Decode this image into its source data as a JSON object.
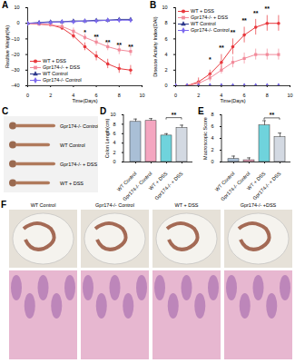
{
  "chart_data": [
    {
      "panel": "A",
      "type": "line",
      "x_label": "Time(Days)",
      "y_label": "Realtive Weight(%)",
      "x": [
        0,
        1,
        2,
        3,
        4,
        5,
        6,
        7,
        8,
        9
      ],
      "xlim": [
        0,
        10
      ],
      "xticks": [
        0,
        2,
        4,
        6,
        8,
        10
      ],
      "ylim": [
        -40,
        10
      ],
      "yticks": [
        -40,
        -30,
        -20,
        -10,
        0,
        10
      ],
      "legend": "lower left",
      "series": [
        {
          "name": "WT + DSS",
          "color": "#e8383d",
          "marker": "circle",
          "values": [
            0,
            -0.5,
            -1,
            -3,
            -8,
            -15,
            -21,
            -26,
            -29,
            -30
          ],
          "errors": [
            0,
            0.5,
            1,
            1.5,
            2,
            2.5,
            3,
            3,
            3,
            3
          ]
        },
        {
          "name": "Gpr174-/- + DSS",
          "color": "#f28a9a",
          "marker": "square",
          "values": [
            0,
            -0.5,
            -1,
            -2,
            -5,
            -9,
            -12,
            -15,
            -17,
            -18
          ],
          "errors": [
            0,
            0.5,
            1,
            1.5,
            2,
            2,
            2.5,
            2.5,
            3,
            3
          ]
        },
        {
          "name": "WT Control",
          "color": "#2e3a8c",
          "marker": "triangle",
          "values": [
            0,
            0.5,
            1,
            1,
            1.5,
            1.5,
            2,
            2,
            2.5,
            2.5
          ],
          "errors": [
            0,
            0.5,
            0.5,
            0.5,
            0.5,
            0.5,
            0.5,
            0.5,
            0.5,
            0.5
          ]
        },
        {
          "name": "Gpr174-/- Control",
          "color": "#7b68ee",
          "marker": "diamond",
          "values": [
            0,
            0.3,
            0.5,
            1,
            1,
            1.5,
            1.5,
            2,
            2,
            2
          ],
          "errors": [
            0,
            0.5,
            0.5,
            0.5,
            0.5,
            0.5,
            0.5,
            0.5,
            0.5,
            0.5
          ]
        }
      ],
      "annotations": [
        {
          "x": 5,
          "y": -6,
          "text": "*"
        },
        {
          "x": 6,
          "y": -9,
          "text": "**"
        },
        {
          "x": 7,
          "y": -12,
          "text": "**"
        },
        {
          "x": 8,
          "y": -14,
          "text": "**"
        },
        {
          "x": 9,
          "y": -15,
          "text": "**"
        }
      ]
    },
    {
      "panel": "B",
      "type": "line",
      "x_label": "Time(Days)",
      "y_label": "Disease Activity Index(DAI)",
      "x": [
        0,
        1,
        2,
        3,
        4,
        5,
        6,
        7,
        8,
        9
      ],
      "xlim": [
        0,
        10
      ],
      "xticks": [
        0,
        2,
        4,
        6,
        8,
        10
      ],
      "ylim": [
        0,
        10
      ],
      "yticks": [
        0,
        2,
        4,
        6,
        8,
        10
      ],
      "legend": "upper left",
      "series": [
        {
          "name": "WT + DSS",
          "color": "#e8383d",
          "marker": "circle",
          "values": [
            0,
            0,
            0.5,
            1.5,
            3,
            5,
            6.5,
            7.5,
            8,
            8
          ],
          "errors": [
            0,
            0,
            0.5,
            0.5,
            1,
            1,
            1,
            1,
            1,
            1
          ]
        },
        {
          "name": "Gpr174-/- + DSS",
          "color": "#f28a9a",
          "marker": "square",
          "values": [
            0,
            0,
            0.3,
            1,
            2,
            3,
            3.5,
            4,
            4,
            4
          ],
          "errors": [
            0,
            0,
            0.3,
            0.5,
            0.5,
            0.7,
            0.7,
            0.7,
            0.7,
            0.7
          ]
        },
        {
          "name": "WT Control",
          "color": "#2e3a8c",
          "marker": "triangle",
          "values": [
            0,
            0,
            0,
            0,
            0,
            0,
            0,
            0,
            0,
            0
          ],
          "errors": [
            0,
            0,
            0,
            0,
            0,
            0,
            0,
            0,
            0,
            0
          ]
        },
        {
          "name": "Gpr174-/- Control",
          "color": "#7b68ee",
          "marker": "diamond",
          "values": [
            0,
            0,
            0,
            0,
            0,
            0,
            0,
            0,
            0,
            0
          ],
          "errors": [
            0,
            0,
            0,
            0,
            0,
            0,
            0,
            0,
            0,
            0
          ]
        }
      ],
      "annotations": [
        {
          "x": 3,
          "y": 3.3,
          "text": "*"
        },
        {
          "x": 4,
          "y": 4.8,
          "text": "**"
        },
        {
          "x": 5,
          "y": 6.8,
          "text": "**"
        },
        {
          "x": 6,
          "y": 8.3,
          "text": "**"
        },
        {
          "x": 7,
          "y": 9.3,
          "text": "**"
        },
        {
          "x": 8,
          "y": 9.8,
          "text": "**"
        }
      ]
    },
    {
      "panel": "D",
      "type": "bar",
      "y_label": "Colon Length(cm)",
      "categories": [
        "WT Control",
        "Gpr174-/- Control",
        "WT + DSS",
        "Gpr174-/- + DSS"
      ],
      "values": [
        8.5,
        8.7,
        5.6,
        7.2
      ],
      "errors": [
        0.6,
        0.5,
        0.4,
        0.6
      ],
      "colors": [
        "#a9bfd6",
        "#f4a6c0",
        "#6fd3dc",
        "#d3d9e2"
      ],
      "ylim": [
        0,
        10
      ],
      "yticks": [
        0,
        2,
        4,
        6,
        8,
        10
      ],
      "annotations": [
        {
          "from": "WT + DSS",
          "to": "Gpr174-/- + DSS",
          "y": 9.3,
          "text": "**"
        }
      ]
    },
    {
      "panel": "E",
      "type": "bar",
      "y_label": "Macroscopic Score",
      "categories": [
        "WT Control",
        "Gpr174-/- Control",
        "WT + DSS",
        "Gpr174-/- + DSS"
      ],
      "values": [
        0.5,
        0.3,
        6.2,
        4.2
      ],
      "errors": [
        0.5,
        0.4,
        0.8,
        0.7
      ],
      "colors": [
        "#a9bfd6",
        "#f4a6c0",
        "#6fd3dc",
        "#d3d9e2"
      ],
      "ylim": [
        0,
        8
      ],
      "yticks": [
        0,
        2,
        4,
        6,
        8
      ],
      "annotations": [
        {
          "from": "WT + DSS",
          "to": "Gpr174-/- + DSS",
          "y": 7.4,
          "text": "**"
        }
      ]
    }
  ],
  "images": [
    {
      "panel": "C",
      "labels": [
        "Gpr174-/- Control",
        "WT Control",
        "Gpr174-/- + DSS",
        "WT + DSS"
      ]
    },
    {
      "panel": "F",
      "labels": [
        "WT Control",
        "Gpr174-/- Control",
        "WT + DSS",
        "Gpr174-/- +DSS"
      ]
    }
  ]
}
